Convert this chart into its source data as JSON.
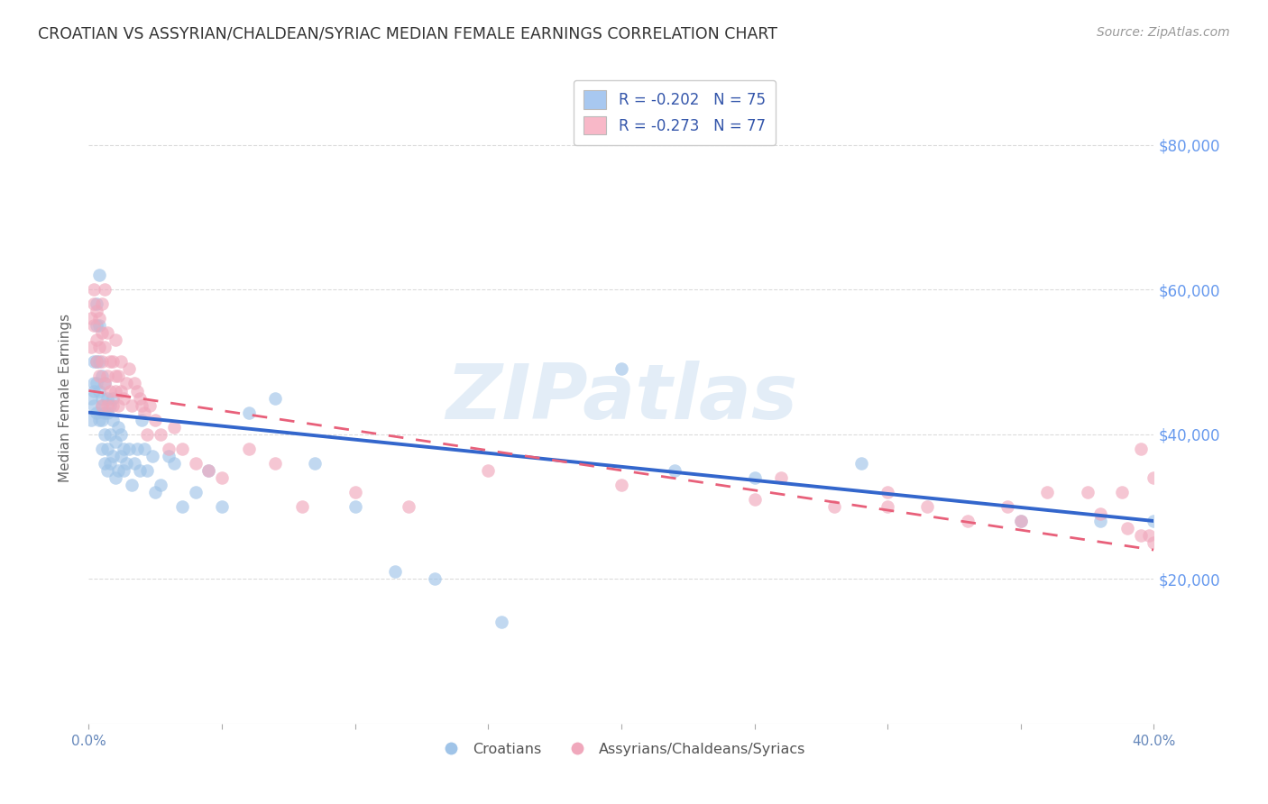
{
  "title": "CROATIAN VS ASSYRIAN/CHALDEAN/SYRIAC MEDIAN FEMALE EARNINGS CORRELATION CHART",
  "source": "Source: ZipAtlas.com",
  "ylabel": "Median Female Earnings",
  "ytick_labels": [
    "$20,000",
    "$40,000",
    "$60,000",
    "$80,000"
  ],
  "ytick_values": [
    20000,
    40000,
    60000,
    80000
  ],
  "xlim": [
    0.0,
    0.4
  ],
  "ylim": [
    0,
    90000
  ],
  "legend_r_entries": [
    {
      "label": "R = -0.202   N = 75",
      "facecolor": "#a8c8f0"
    },
    {
      "label": "R = -0.273   N = 77",
      "facecolor": "#f8b8c8"
    }
  ],
  "croatian_label": "Croatians",
  "assyrian_label": "Assyrians/Chaldeans/Syriacs",
  "dot_color_blue": "#a0c4e8",
  "dot_color_pink": "#f0a8bc",
  "line_color_blue": "#3366cc",
  "line_color_pink": "#e8607a",
  "watermark_text": "ZIPatlas",
  "background_color": "#ffffff",
  "grid_color": "#cccccc",
  "title_color": "#333333",
  "axis_label_color": "#666666",
  "right_tick_color": "#6699ee",
  "source_color": "#999999",
  "croatian_x": [
    0.001,
    0.001,
    0.002,
    0.002,
    0.002,
    0.002,
    0.003,
    0.003,
    0.003,
    0.003,
    0.003,
    0.004,
    0.004,
    0.004,
    0.004,
    0.004,
    0.005,
    0.005,
    0.005,
    0.005,
    0.005,
    0.006,
    0.006,
    0.006,
    0.006,
    0.007,
    0.007,
    0.007,
    0.007,
    0.008,
    0.008,
    0.008,
    0.009,
    0.009,
    0.009,
    0.01,
    0.01,
    0.011,
    0.011,
    0.012,
    0.012,
    0.013,
    0.013,
    0.014,
    0.015,
    0.016,
    0.017,
    0.018,
    0.019,
    0.02,
    0.021,
    0.022,
    0.024,
    0.025,
    0.027,
    0.03,
    0.032,
    0.035,
    0.04,
    0.045,
    0.05,
    0.06,
    0.07,
    0.085,
    0.1,
    0.115,
    0.13,
    0.155,
    0.2,
    0.22,
    0.25,
    0.29,
    0.35,
    0.38,
    0.4
  ],
  "croatian_y": [
    45000,
    42000,
    47000,
    44000,
    50000,
    46000,
    43000,
    47000,
    50000,
    55000,
    58000,
    42000,
    46000,
    50000,
    55000,
    62000,
    38000,
    42000,
    45000,
    48000,
    44000,
    36000,
    40000,
    43000,
    47000,
    35000,
    38000,
    43000,
    45000,
    36000,
    40000,
    44000,
    37000,
    42000,
    45000,
    34000,
    39000,
    35000,
    41000,
    37000,
    40000,
    35000,
    38000,
    36000,
    38000,
    33000,
    36000,
    38000,
    35000,
    42000,
    38000,
    35000,
    37000,
    32000,
    33000,
    37000,
    36000,
    30000,
    32000,
    35000,
    30000,
    43000,
    45000,
    36000,
    30000,
    21000,
    20000,
    14000,
    49000,
    35000,
    34000,
    36000,
    28000,
    28000,
    28000
  ],
  "assyrian_x": [
    0.001,
    0.001,
    0.002,
    0.002,
    0.002,
    0.003,
    0.003,
    0.003,
    0.004,
    0.004,
    0.004,
    0.005,
    0.005,
    0.005,
    0.005,
    0.006,
    0.006,
    0.006,
    0.007,
    0.007,
    0.007,
    0.008,
    0.008,
    0.009,
    0.009,
    0.01,
    0.01,
    0.01,
    0.011,
    0.011,
    0.012,
    0.012,
    0.013,
    0.014,
    0.015,
    0.016,
    0.017,
    0.018,
    0.019,
    0.02,
    0.021,
    0.022,
    0.023,
    0.025,
    0.027,
    0.03,
    0.032,
    0.035,
    0.04,
    0.045,
    0.05,
    0.06,
    0.07,
    0.08,
    0.1,
    0.12,
    0.15,
    0.2,
    0.25,
    0.3,
    0.35,
    0.38,
    0.39,
    0.395,
    0.398,
    0.4,
    0.4,
    0.395,
    0.388,
    0.375,
    0.36,
    0.345,
    0.33,
    0.315,
    0.3,
    0.28,
    0.26
  ],
  "assyrian_y": [
    56000,
    52000,
    60000,
    55000,
    58000,
    53000,
    57000,
    50000,
    52000,
    56000,
    48000,
    54000,
    44000,
    50000,
    58000,
    47000,
    52000,
    60000,
    44000,
    48000,
    54000,
    46000,
    50000,
    50000,
    44000,
    46000,
    48000,
    53000,
    44000,
    48000,
    46000,
    50000,
    45000,
    47000,
    49000,
    44000,
    47000,
    46000,
    45000,
    44000,
    43000,
    40000,
    44000,
    42000,
    40000,
    38000,
    41000,
    38000,
    36000,
    35000,
    34000,
    38000,
    36000,
    30000,
    32000,
    30000,
    35000,
    33000,
    31000,
    30000,
    28000,
    29000,
    27000,
    26000,
    26000,
    34000,
    25000,
    38000,
    32000,
    32000,
    32000,
    30000,
    28000,
    30000,
    32000,
    30000,
    34000
  ]
}
